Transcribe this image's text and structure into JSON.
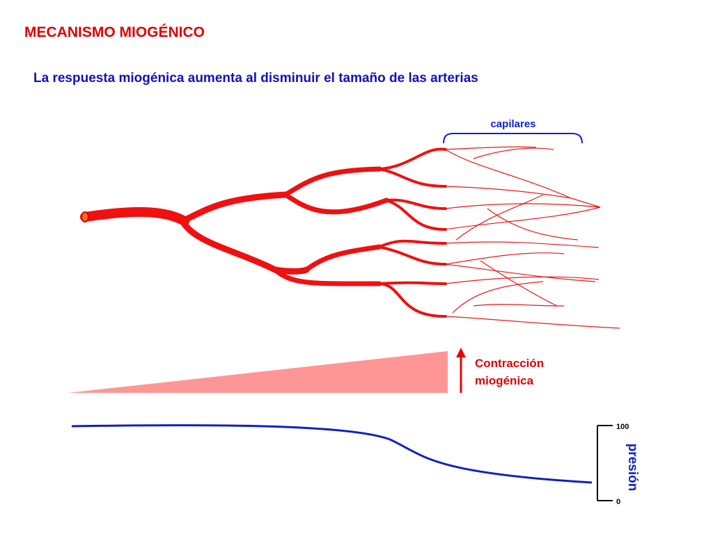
{
  "header": {
    "title": "MECANISMO MIOGÉNICO",
    "subtitle": "La respuesta miogénica aumenta al disminuir el tamaño de las arterias"
  },
  "vessels": {
    "label": "capilares"
  },
  "contraction": {
    "label_line1": "Contracción",
    "label_line2": "miogénica"
  },
  "pressure": {
    "label": "presión",
    "scale_max": 100,
    "scale_min": 0
  }
}
